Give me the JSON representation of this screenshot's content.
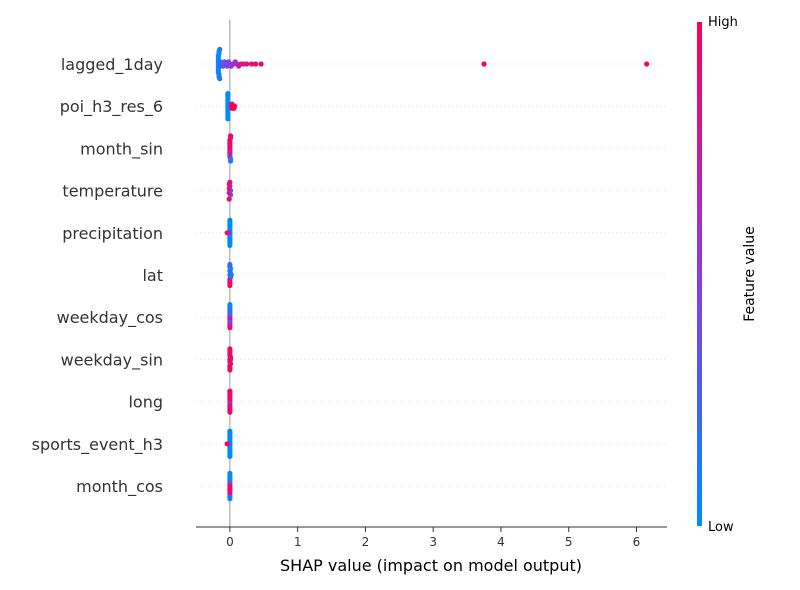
{
  "chart_data": {
    "type": "scatter",
    "subtype": "shap-beeswarm",
    "xlabel": "SHAP value (impact on model output)",
    "xlim": [
      -0.5,
      6.45
    ],
    "x_ticks": [
      0,
      1,
      2,
      3,
      4,
      5,
      6
    ],
    "grid": false,
    "legend": "colorbar-right",
    "colorbar": {
      "title": "Feature value",
      "high_label": "High",
      "low_label": "Low",
      "low_color": "#008bfb",
      "high_color": "#ff0052"
    },
    "features": [
      {
        "name": "lagged_1day",
        "points": [
          {
            "x": -0.17,
            "v": 0.0,
            "o": 0
          },
          {
            "x": -0.17,
            "v": 0.0,
            "o": 1
          },
          {
            "x": -0.17,
            "v": 0.0,
            "o": -1
          },
          {
            "x": -0.17,
            "v": 0.05,
            "o": 2
          },
          {
            "x": -0.17,
            "v": 0.05,
            "o": -2
          },
          {
            "x": -0.17,
            "v": 0.0,
            "o": 3
          },
          {
            "x": -0.17,
            "v": 0.0,
            "o": -3
          },
          {
            "x": -0.17,
            "v": 0.1,
            "o": 4
          },
          {
            "x": -0.17,
            "v": 0.0,
            "o": -4
          },
          {
            "x": -0.16,
            "v": 0.0,
            "o": 5
          },
          {
            "x": -0.16,
            "v": 0.0,
            "o": -5
          },
          {
            "x": -0.16,
            "v": 0.1,
            "o": 6
          },
          {
            "x": -0.16,
            "v": 0.0,
            "o": -6
          },
          {
            "x": -0.15,
            "v": 0.15,
            "o": 7
          },
          {
            "x": -0.15,
            "v": 0.1,
            "o": -7
          },
          {
            "x": -0.14,
            "v": 0.2,
            "o": 1
          },
          {
            "x": -0.14,
            "v": 0.2,
            "o": -1
          },
          {
            "x": -0.12,
            "v": 0.25,
            "o": 0
          },
          {
            "x": -0.1,
            "v": 0.3,
            "o": 1
          },
          {
            "x": -0.08,
            "v": 0.35,
            "o": -1
          },
          {
            "x": -0.06,
            "v": 0.4,
            "o": 0
          },
          {
            "x": -0.04,
            "v": 0.45,
            "o": 1
          },
          {
            "x": -0.02,
            "v": 0.45,
            "o": -1
          },
          {
            "x": 0.0,
            "v": 0.5,
            "o": 0
          },
          {
            "x": 0.02,
            "v": 0.55,
            "o": 1
          },
          {
            "x": 0.05,
            "v": 0.6,
            "o": 0
          },
          {
            "x": 0.08,
            "v": 0.6,
            "o": -1
          },
          {
            "x": 0.1,
            "v": 0.65,
            "o": 0
          },
          {
            "x": 0.13,
            "v": 0.7,
            "o": 1
          },
          {
            "x": 0.16,
            "v": 0.75,
            "o": 0
          },
          {
            "x": 0.2,
            "v": 0.8,
            "o": 0
          },
          {
            "x": 0.25,
            "v": 0.85,
            "o": 0
          },
          {
            "x": 0.32,
            "v": 0.9,
            "o": 0
          },
          {
            "x": 0.38,
            "v": 0.92,
            "o": 0
          },
          {
            "x": 0.46,
            "v": 0.95,
            "o": 0
          },
          {
            "x": 3.75,
            "v": 1.0,
            "o": 0
          },
          {
            "x": 6.15,
            "v": 1.0,
            "o": 0
          }
        ]
      },
      {
        "name": "poi_h3_res_6",
        "points": [
          {
            "x": -0.03,
            "v": 0.0,
            "o": 0
          },
          {
            "x": -0.03,
            "v": 0.0,
            "o": 1
          },
          {
            "x": -0.03,
            "v": 0.0,
            "o": -1
          },
          {
            "x": -0.03,
            "v": 0.0,
            "o": 2
          },
          {
            "x": -0.03,
            "v": 0.0,
            "o": -2
          },
          {
            "x": -0.03,
            "v": 0.0,
            "o": 3
          },
          {
            "x": -0.03,
            "v": 0.0,
            "o": -3
          },
          {
            "x": -0.03,
            "v": 0.0,
            "o": 4
          },
          {
            "x": -0.03,
            "v": 0.0,
            "o": -4
          },
          {
            "x": -0.03,
            "v": 0.0,
            "o": 5
          },
          {
            "x": -0.03,
            "v": 0.0,
            "o": -5
          },
          {
            "x": -0.03,
            "v": 0.0,
            "o": 6
          },
          {
            "x": -0.03,
            "v": 0.0,
            "o": -6
          },
          {
            "x": 0.02,
            "v": 0.9,
            "o": 0
          },
          {
            "x": 0.03,
            "v": 0.95,
            "o": 1
          },
          {
            "x": 0.03,
            "v": 0.95,
            "o": -1
          },
          {
            "x": 0.05,
            "v": 1.0,
            "o": 0
          },
          {
            "x": 0.06,
            "v": 1.0,
            "o": 1
          },
          {
            "x": 0.07,
            "v": 1.0,
            "o": 0
          }
        ]
      },
      {
        "name": "month_sin",
        "points": [
          {
            "x": 0.0,
            "v": 0.95,
            "o": 0
          },
          {
            "x": 0.0,
            "v": 0.9,
            "o": 1
          },
          {
            "x": 0.0,
            "v": 0.95,
            "o": -1
          },
          {
            "x": 0.0,
            "v": 0.7,
            "o": 2
          },
          {
            "x": 0.0,
            "v": 0.9,
            "o": -2
          },
          {
            "x": 0.0,
            "v": 0.8,
            "o": 3
          },
          {
            "x": 0.0,
            "v": 0.95,
            "o": -3
          },
          {
            "x": 0.0,
            "v": 0.6,
            "o": 4
          },
          {
            "x": 0.0,
            "v": 0.85,
            "o": -4
          },
          {
            "x": 0.01,
            "v": 0.3,
            "o": 5
          },
          {
            "x": 0.01,
            "v": 0.9,
            "o": -5
          },
          {
            "x": 0.01,
            "v": 0.1,
            "o": 6
          },
          {
            "x": 0.01,
            "v": 0.95,
            "o": -6
          }
        ]
      },
      {
        "name": "temperature",
        "points": [
          {
            "x": -0.01,
            "v": 0.95,
            "o": 4
          },
          {
            "x": 0.01,
            "v": 0.5,
            "o": 2
          },
          {
            "x": -0.01,
            "v": 0.9,
            "o": 1
          },
          {
            "x": 0.01,
            "v": 0.4,
            "o": 0
          },
          {
            "x": -0.01,
            "v": 0.95,
            "o": -1
          },
          {
            "x": 0.0,
            "v": 0.6,
            "o": -2
          },
          {
            "x": -0.01,
            "v": 0.9,
            "o": -3
          },
          {
            "x": 0.0,
            "v": 0.85,
            "o": -4
          }
        ]
      },
      {
        "name": "precipitation",
        "points": [
          {
            "x": 0.0,
            "v": 0.0,
            "o": 0
          },
          {
            "x": 0.0,
            "v": 0.0,
            "o": 1
          },
          {
            "x": 0.0,
            "v": 0.0,
            "o": -1
          },
          {
            "x": 0.0,
            "v": 0.0,
            "o": 2
          },
          {
            "x": 0.0,
            "v": 0.0,
            "o": -2
          },
          {
            "x": 0.0,
            "v": 0.0,
            "o": 3
          },
          {
            "x": 0.0,
            "v": 0.0,
            "o": -3
          },
          {
            "x": 0.0,
            "v": 0.0,
            "o": 4
          },
          {
            "x": 0.0,
            "v": 0.0,
            "o": -4
          },
          {
            "x": 0.0,
            "v": 0.0,
            "o": 5
          },
          {
            "x": 0.0,
            "v": 0.0,
            "o": -5
          },
          {
            "x": 0.0,
            "v": 0.0,
            "o": 6
          },
          {
            "x": 0.0,
            "v": 0.0,
            "o": -6
          },
          {
            "x": -0.04,
            "v": 1.0,
            "o": 0
          },
          {
            "x": -0.02,
            "v": 0.8,
            "o": 0
          }
        ]
      },
      {
        "name": "lat",
        "points": [
          {
            "x": 0.0,
            "v": 0.95,
            "o": 5
          },
          {
            "x": 0.0,
            "v": 0.9,
            "o": 4
          },
          {
            "x": 0.0,
            "v": 0.95,
            "o": 3
          },
          {
            "x": 0.0,
            "v": 0.85,
            "o": 2
          },
          {
            "x": 0.01,
            "v": 0.6,
            "o": 1
          },
          {
            "x": 0.0,
            "v": 0.1,
            "o": 0
          },
          {
            "x": 0.01,
            "v": 0.0,
            "o": -1
          },
          {
            "x": 0.0,
            "v": 0.3,
            "o": -2
          },
          {
            "x": 0.01,
            "v": 0.05,
            "o": -3
          },
          {
            "x": 0.0,
            "v": 0.0,
            "o": -4
          },
          {
            "x": 0.0,
            "v": 0.2,
            "o": -5
          },
          {
            "x": 0.02,
            "v": 0.1,
            "o": 0
          }
        ]
      },
      {
        "name": "weekday_cos",
        "points": [
          {
            "x": 0.0,
            "v": 0.95,
            "o": 5
          },
          {
            "x": 0.0,
            "v": 0.9,
            "o": 4
          },
          {
            "x": 0.0,
            "v": 0.7,
            "o": 3
          },
          {
            "x": 0.0,
            "v": 0.5,
            "o": 2
          },
          {
            "x": 0.0,
            "v": 0.3,
            "o": 1
          },
          {
            "x": 0.0,
            "v": 0.95,
            "o": 0
          },
          {
            "x": 0.0,
            "v": 0.5,
            "o": -1
          },
          {
            "x": 0.0,
            "v": 0.2,
            "o": -2
          },
          {
            "x": 0.0,
            "v": 0.1,
            "o": -3
          },
          {
            "x": 0.0,
            "v": 0.3,
            "o": -4
          },
          {
            "x": 0.0,
            "v": 0.05,
            "o": -5
          },
          {
            "x": 0.0,
            "v": 0.0,
            "o": -6
          }
        ]
      },
      {
        "name": "weekday_sin",
        "points": [
          {
            "x": 0.0,
            "v": 0.95,
            "o": 5
          },
          {
            "x": 0.0,
            "v": 0.9,
            "o": 4
          },
          {
            "x": 0.0,
            "v": 0.95,
            "o": 3
          },
          {
            "x": 0.01,
            "v": 0.95,
            "o": 2
          },
          {
            "x": 0.0,
            "v": 0.8,
            "o": 1
          },
          {
            "x": 0.0,
            "v": 0.95,
            "o": 0
          },
          {
            "x": 0.01,
            "v": 0.9,
            "o": -1
          },
          {
            "x": 0.0,
            "v": 0.95,
            "o": -2
          },
          {
            "x": 0.0,
            "v": 0.85,
            "o": -3
          },
          {
            "x": 0.0,
            "v": 0.9,
            "o": -4
          },
          {
            "x": 0.0,
            "v": 0.95,
            "o": -5
          },
          {
            "x": 0.01,
            "v": 0.9,
            "o": 0
          }
        ]
      },
      {
        "name": "long",
        "points": [
          {
            "x": 0.0,
            "v": 0.95,
            "o": 5
          },
          {
            "x": 0.0,
            "v": 0.9,
            "o": 4
          },
          {
            "x": 0.0,
            "v": 0.95,
            "o": 3
          },
          {
            "x": 0.0,
            "v": 0.85,
            "o": 2
          },
          {
            "x": 0.0,
            "v": 0.9,
            "o": 1
          },
          {
            "x": 0.0,
            "v": 0.4,
            "o": 0
          },
          {
            "x": 0.0,
            "v": 0.95,
            "o": -1
          },
          {
            "x": 0.0,
            "v": 0.9,
            "o": -2
          },
          {
            "x": 0.0,
            "v": 0.95,
            "o": -3
          },
          {
            "x": 0.0,
            "v": 0.85,
            "o": -4
          },
          {
            "x": 0.0,
            "v": 0.95,
            "o": -5
          }
        ]
      },
      {
        "name": "sports_event_h3",
        "points": [
          {
            "x": 0.0,
            "v": 0.0,
            "o": 0
          },
          {
            "x": 0.0,
            "v": 0.0,
            "o": 1
          },
          {
            "x": 0.0,
            "v": 0.0,
            "o": -1
          },
          {
            "x": 0.0,
            "v": 0.0,
            "o": 2
          },
          {
            "x": 0.0,
            "v": 0.0,
            "o": -2
          },
          {
            "x": 0.0,
            "v": 0.0,
            "o": 3
          },
          {
            "x": 0.0,
            "v": 0.0,
            "o": -3
          },
          {
            "x": 0.0,
            "v": 0.0,
            "o": 4
          },
          {
            "x": 0.0,
            "v": 0.0,
            "o": -4
          },
          {
            "x": 0.0,
            "v": 0.0,
            "o": 5
          },
          {
            "x": 0.0,
            "v": 0.0,
            "o": -5
          },
          {
            "x": 0.0,
            "v": 0.0,
            "o": 6
          },
          {
            "x": 0.0,
            "v": 0.0,
            "o": -6
          },
          {
            "x": -0.04,
            "v": 1.0,
            "o": 0
          }
        ]
      },
      {
        "name": "month_cos",
        "points": [
          {
            "x": 0.0,
            "v": 0.0,
            "o": 6
          },
          {
            "x": 0.0,
            "v": 0.0,
            "o": 5
          },
          {
            "x": 0.0,
            "v": 0.3,
            "o": 4
          },
          {
            "x": 0.0,
            "v": 0.95,
            "o": 3
          },
          {
            "x": 0.0,
            "v": 0.9,
            "o": 2
          },
          {
            "x": 0.0,
            "v": 0.95,
            "o": 1
          },
          {
            "x": 0.0,
            "v": 0.85,
            "o": 0
          },
          {
            "x": 0.0,
            "v": 0.9,
            "o": -1
          },
          {
            "x": 0.0,
            "v": 0.6,
            "o": -2
          },
          {
            "x": 0.0,
            "v": 0.1,
            "o": -3
          },
          {
            "x": 0.0,
            "v": 0.0,
            "o": -4
          },
          {
            "x": 0.0,
            "v": 0.0,
            "o": -5
          },
          {
            "x": 0.0,
            "v": 0.0,
            "o": -6
          }
        ]
      }
    ]
  }
}
